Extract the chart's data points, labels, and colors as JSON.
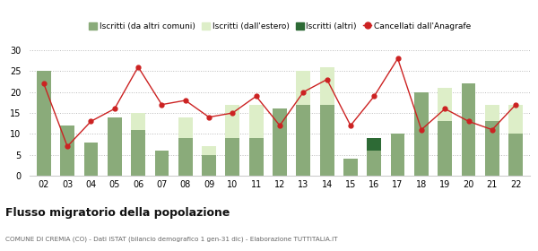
{
  "years": [
    "02",
    "03",
    "04",
    "05",
    "06",
    "07",
    "08",
    "09",
    "10",
    "11",
    "12",
    "13",
    "14",
    "15",
    "16",
    "17",
    "18",
    "19",
    "20",
    "21",
    "22"
  ],
  "iscritti_altri_comuni": [
    25,
    12,
    8,
    14,
    11,
    6,
    9,
    5,
    9,
    9,
    16,
    17,
    17,
    4,
    6,
    10,
    20,
    13,
    22,
    13,
    10
  ],
  "iscritti_estero": [
    0,
    0,
    0,
    0,
    4,
    0,
    5,
    2,
    8,
    8,
    0,
    8,
    9,
    0,
    0,
    0,
    0,
    8,
    0,
    4,
    7
  ],
  "iscritti_altri": [
    0,
    0,
    0,
    0,
    0,
    0,
    0,
    0,
    0,
    0,
    0,
    0,
    0,
    0,
    3,
    0,
    0,
    0,
    0,
    0,
    0
  ],
  "cancellati": [
    22,
    7,
    13,
    16,
    26,
    17,
    18,
    14,
    15,
    19,
    12,
    20,
    23,
    12,
    19,
    28,
    11,
    16,
    13,
    11,
    17
  ],
  "color_altri_comuni": "#8aab7a",
  "color_estero": "#ddeec8",
  "color_altri": "#2d6a35",
  "color_cancellati": "#cc2222",
  "bg_color": "#ffffff",
  "title": "Flusso migratorio della popolazione",
  "subtitle": "COMUNE DI CREMIA (CO) - Dati ISTAT (bilancio demografico 1 gen-31 dic) - Elaborazione TUTTITALIA.IT",
  "legend_labels": [
    "Iscritti (da altri comuni)",
    "Iscritti (dall'estero)",
    "Iscritti (altri)",
    "Cancellati dall'Anagrafe"
  ],
  "ylim": [
    0,
    30
  ],
  "yticks": [
    0,
    5,
    10,
    15,
    20,
    25,
    30
  ]
}
